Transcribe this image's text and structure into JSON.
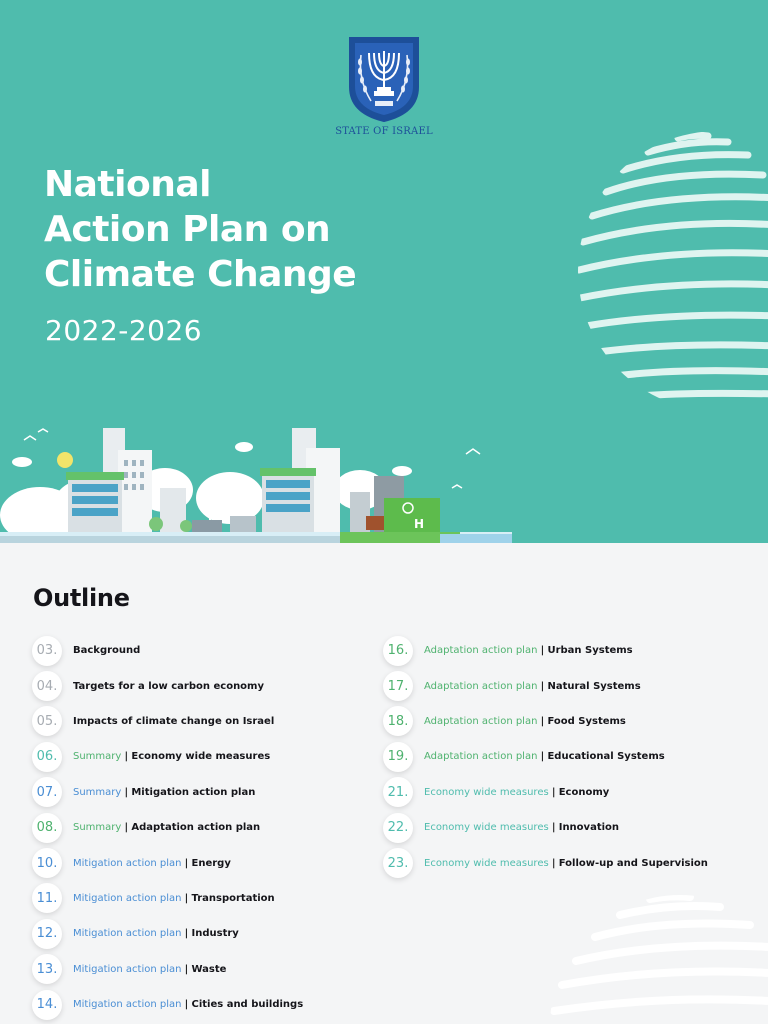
{
  "header": {
    "emblem_caption": "STATE OF ISRAEL",
    "title_lines": [
      "National",
      "Action Plan on",
      "Climate Change"
    ],
    "years": "2022-2026"
  },
  "outline": {
    "heading": "Outline",
    "left": [
      {
        "num": "03.",
        "category": "",
        "topic": "Background",
        "color": "gray"
      },
      {
        "num": "04.",
        "category": "",
        "topic": "Targets for a low carbon economy",
        "color": "gray"
      },
      {
        "num": "05.",
        "category": "",
        "topic": "Impacts of climate change on Israel",
        "color": "gray"
      },
      {
        "num": "06.",
        "category": "Summary",
        "topic": "Economy wide measures",
        "color": "teal",
        "cat_color": "green"
      },
      {
        "num": "07.",
        "category": "Summary",
        "topic": "Mitigation action plan",
        "color": "blue",
        "cat_color": "blue"
      },
      {
        "num": "08.",
        "category": "Summary",
        "topic": "Adaptation action plan",
        "color": "green",
        "cat_color": "green"
      },
      {
        "num": "10.",
        "category": "Mitigation action plan",
        "topic": "Energy",
        "color": "blue",
        "cat_color": "blue"
      },
      {
        "num": "11.",
        "category": "Mitigation action plan",
        "topic": "Transportation",
        "color": "blue",
        "cat_color": "blue"
      },
      {
        "num": "12.",
        "category": "Mitigation action plan",
        "topic": "Industry",
        "color": "blue",
        "cat_color": "blue"
      },
      {
        "num": "13.",
        "category": "Mitigation action plan",
        "topic": "Waste",
        "color": "blue",
        "cat_color": "blue"
      },
      {
        "num": "14.",
        "category": "Mitigation action plan",
        "topic": "Cities and buildings",
        "color": "blue",
        "cat_color": "blue"
      }
    ],
    "right": [
      {
        "num": "16.",
        "category": "Adaptation action plan",
        "topic": "Urban Systems",
        "color": "green",
        "cat_color": "green"
      },
      {
        "num": "17.",
        "category": "Adaptation action plan",
        "topic": "Natural Systems",
        "color": "green",
        "cat_color": "green"
      },
      {
        "num": "18.",
        "category": "Adaptation action plan",
        "topic": "Food Systems",
        "color": "green",
        "cat_color": "green"
      },
      {
        "num": "19.",
        "category": "Adaptation action plan",
        "topic": "Educational Systems",
        "color": "green",
        "cat_color": "green"
      },
      {
        "num": "21.",
        "category": "Economy wide measures",
        "topic": "Economy",
        "color": "teal",
        "cat_color": "teal"
      },
      {
        "num": "22.",
        "category": "Economy wide measures",
        "topic": "Innovation",
        "color": "teal",
        "cat_color": "teal"
      },
      {
        "num": "23.",
        "category": "Economy wide measures",
        "topic": "Follow-up and Supervision",
        "color": "teal",
        "cat_color": "teal"
      }
    ]
  },
  "colors": {
    "hero_bg": "#4fbcad",
    "emblem_blue": "#1d4f99",
    "category_green": "#4fb26f",
    "category_blue": "#4a8ed4",
    "category_teal": "#4fbcad"
  }
}
